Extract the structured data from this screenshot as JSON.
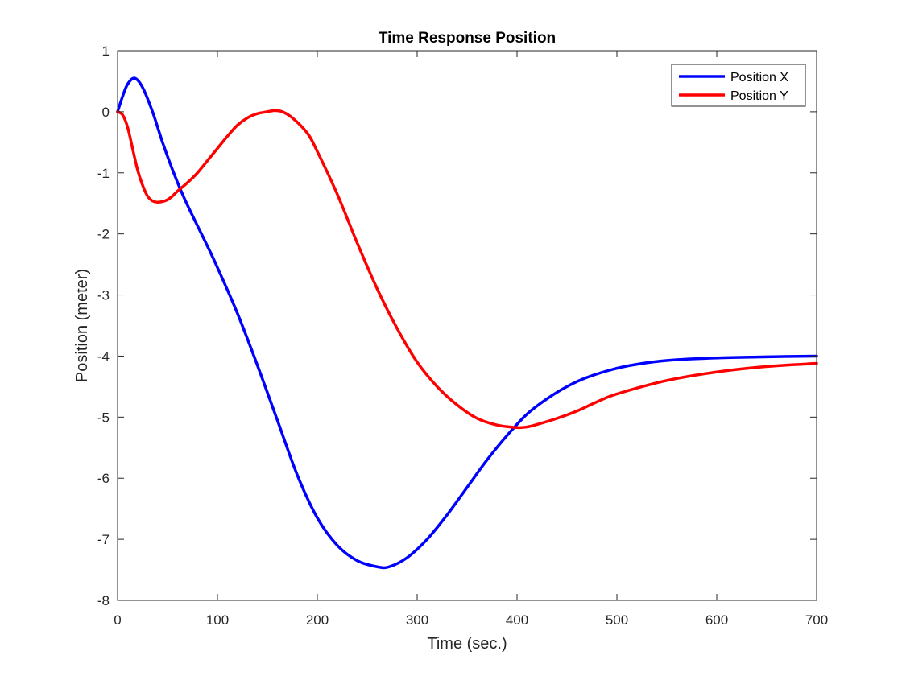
{
  "chart_data": {
    "type": "line",
    "title": "Time Response Position",
    "xlabel": "Time (sec.)",
    "ylabel": "Position (meter)",
    "xlim": [
      0,
      700
    ],
    "ylim": [
      -8,
      1
    ],
    "xticks": [
      0,
      100,
      200,
      300,
      400,
      500,
      600,
      700
    ],
    "yticks": [
      1,
      0,
      -1,
      -2,
      -3,
      -4,
      -5,
      -6,
      -7,
      -8
    ],
    "grid": false,
    "legend_position": "top-right",
    "series": [
      {
        "name": "Position X",
        "color": "#0000ff",
        "x": [
          0,
          5,
          10,
          17,
          25,
          35,
          45,
          55,
          65,
          75,
          90,
          100,
          120,
          140,
          160,
          180,
          200,
          220,
          240,
          260,
          272,
          290,
          310,
          330,
          350,
          370,
          390,
          410,
          430,
          450,
          470,
          500,
          530,
          560,
          600,
          640,
          700
        ],
        "y": [
          0,
          0.25,
          0.45,
          0.55,
          0.4,
          0.0,
          -0.5,
          -0.95,
          -1.35,
          -1.7,
          -2.2,
          -2.55,
          -3.3,
          -4.15,
          -5.05,
          -5.95,
          -6.65,
          -7.1,
          -7.35,
          -7.45,
          -7.45,
          -7.3,
          -7.0,
          -6.6,
          -6.15,
          -5.7,
          -5.3,
          -4.95,
          -4.7,
          -4.5,
          -4.35,
          -4.2,
          -4.11,
          -4.06,
          -4.03,
          -4.015,
          -4.0
        ]
      },
      {
        "name": "Position Y",
        "color": "#ff0000",
        "x": [
          0,
          5,
          10,
          15,
          20,
          25,
          30,
          35,
          40,
          45,
          50,
          55,
          60,
          70,
          80,
          90,
          100,
          110,
          120,
          130,
          140,
          150,
          157,
          165,
          175,
          190,
          200,
          220,
          240,
          260,
          280,
          300,
          320,
          340,
          360,
          380,
          400,
          410,
          420,
          440,
          460,
          480,
          500,
          550,
          600,
          650,
          700
        ],
        "y": [
          0,
          -0.05,
          -0.25,
          -0.6,
          -0.95,
          -1.2,
          -1.38,
          -1.46,
          -1.48,
          -1.47,
          -1.44,
          -1.38,
          -1.3,
          -1.16,
          -1.0,
          -0.8,
          -0.6,
          -0.4,
          -0.22,
          -0.1,
          -0.03,
          0.0,
          0.02,
          0.0,
          -0.1,
          -0.35,
          -0.65,
          -1.35,
          -2.15,
          -2.9,
          -3.55,
          -4.1,
          -4.5,
          -4.8,
          -5.02,
          -5.13,
          -5.17,
          -5.16,
          -5.12,
          -5.02,
          -4.9,
          -4.75,
          -4.62,
          -4.4,
          -4.26,
          -4.17,
          -4.12
        ]
      }
    ]
  }
}
